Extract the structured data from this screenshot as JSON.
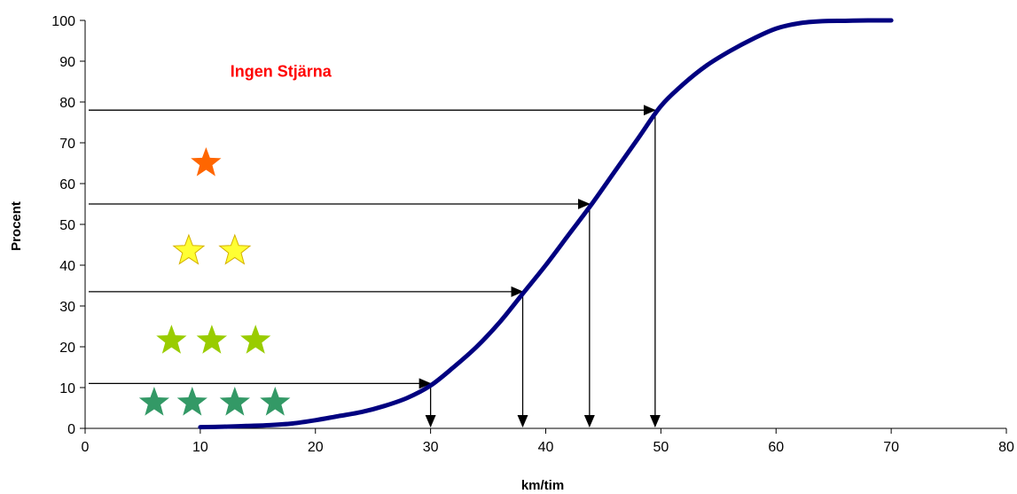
{
  "chart_data": {
    "type": "line",
    "xlabel": "km/tim",
    "ylabel": "Procent",
    "xlim": [
      0,
      80
    ],
    "ylim": [
      0,
      100
    ],
    "x_ticks": [
      "0",
      "10",
      "20",
      "30",
      "40",
      "50",
      "60",
      "70",
      "80"
    ],
    "y_ticks": [
      "0",
      "10",
      "20",
      "30",
      "40",
      "50",
      "60",
      "70",
      "80",
      "90",
      "100"
    ],
    "grid": false,
    "series": [
      {
        "color": "#000080",
        "x": [
          10,
          12,
          14,
          16,
          18,
          20,
          22,
          24,
          26,
          28,
          30,
          32,
          34,
          36,
          38,
          40,
          42,
          44,
          46,
          48,
          50,
          52,
          54,
          56,
          58,
          60,
          62,
          64,
          66,
          68,
          70
        ],
        "y": [
          0.3,
          0.4,
          0.6,
          0.8,
          1.2,
          2,
          3,
          4,
          5.5,
          7.5,
          10.5,
          15,
          20,
          26,
          33,
          40,
          47.5,
          55,
          63,
          71,
          79,
          84.5,
          89,
          92.5,
          95.5,
          98,
          99.3,
          99.8,
          99.9,
          100,
          100
        ]
      }
    ],
    "markers": [
      {
        "x": 30,
        "y": 11
      },
      {
        "x": 38,
        "y": 33.5
      },
      {
        "x": 43.8,
        "y": 55
      },
      {
        "x": 49.5,
        "y": 78
      }
    ],
    "annotations": [
      {
        "text": "Ingen Stjärna",
        "x": 17,
        "y": 87.5,
        "color": "#ff0000"
      }
    ],
    "star_groups": [
      {
        "label_stars": 1,
        "color": "#ff6600",
        "y": 65,
        "xs": [
          10.5
        ]
      },
      {
        "label_stars": 2,
        "color": "#ffff33",
        "y": 43.5,
        "xs": [
          9,
          13
        ]
      },
      {
        "label_stars": 3,
        "color": "#99cc00",
        "y": 21.5,
        "xs": [
          7.5,
          11,
          14.8
        ]
      },
      {
        "label_stars": 4,
        "color": "#339966",
        "y": 6.3,
        "xs": [
          6,
          9.3,
          13,
          16.5
        ]
      }
    ]
  }
}
